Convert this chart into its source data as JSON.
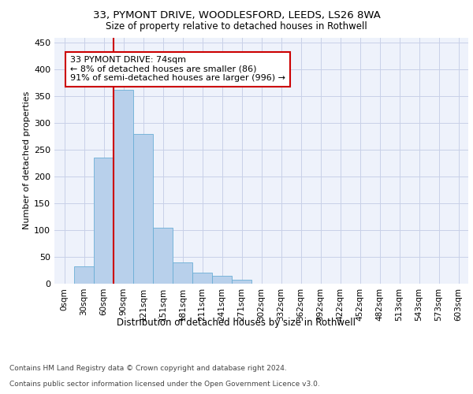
{
  "title1": "33, PYMONT DRIVE, WOODLESFORD, LEEDS, LS26 8WA",
  "title2": "Size of property relative to detached houses in Rothwell",
  "xlabel": "Distribution of detached houses by size in Rothwell",
  "ylabel": "Number of detached properties",
  "bin_labels": [
    "0sqm",
    "30sqm",
    "60sqm",
    "90sqm",
    "121sqm",
    "151sqm",
    "181sqm",
    "211sqm",
    "241sqm",
    "271sqm",
    "302sqm",
    "332sqm",
    "362sqm",
    "392sqm",
    "422sqm",
    "452sqm",
    "482sqm",
    "513sqm",
    "543sqm",
    "573sqm",
    "603sqm"
  ],
  "bar_values": [
    0,
    33,
    235,
    362,
    280,
    105,
    40,
    20,
    14,
    7,
    0,
    0,
    0,
    0,
    0,
    0,
    0,
    0,
    0,
    0,
    0
  ],
  "bar_color": "#b8d0eb",
  "bar_edge_color": "#6aaed6",
  "vline_color": "#cc0000",
  "annotation_text": "33 PYMONT DRIVE: 74sqm\n← 8% of detached houses are smaller (86)\n91% of semi-detached houses are larger (996) →",
  "annotation_box_color": "#ffffff",
  "annotation_box_edge": "#cc0000",
  "ylim": [
    0,
    460
  ],
  "yticks": [
    0,
    50,
    100,
    150,
    200,
    250,
    300,
    350,
    400,
    450
  ],
  "footer1": "Contains HM Land Registry data © Crown copyright and database right 2024.",
  "footer2": "Contains public sector information licensed under the Open Government Licence v3.0.",
  "bg_color": "#eef2fb",
  "grid_color": "#c8d0e8",
  "fig_bg": "#ffffff"
}
